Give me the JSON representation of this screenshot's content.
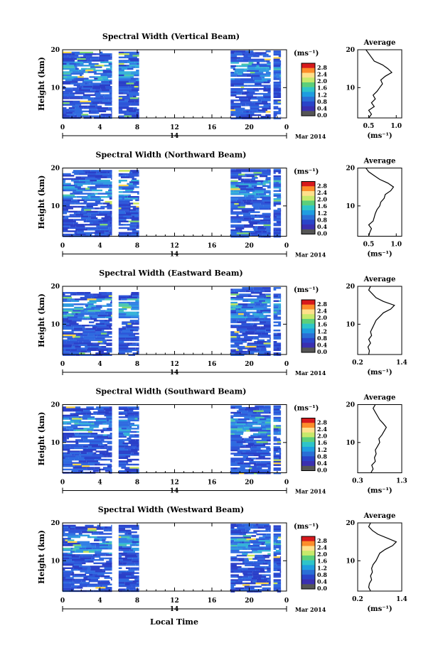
{
  "figure": {
    "xlabel_bottom": "Local Time",
    "date_label": "Mar 2014",
    "day_label": "14",
    "ylabel": "Height (km)",
    "unit_label": "(ms⁻¹)",
    "avg_title": "Average",
    "avg_xlabel": "(ms⁻¹)"
  },
  "colorbar": {
    "ticks": [
      "2.8",
      "2.4",
      "2.0",
      "1.6",
      "1.2",
      "0.8",
      "0.4",
      "0.0"
    ],
    "colors": [
      "#d7191c",
      "#fc8d2b",
      "#fee08b",
      "#c7e96b",
      "#5ccf7a",
      "#2ec4c9",
      "#1f9de0",
      "#2a6fd6",
      "#2a44c9",
      "#3a2fb0",
      "#555555"
    ]
  },
  "chart_data": [
    {
      "type": "heatmap",
      "title": "Spectral Width (Vertical Beam)",
      "x_ticks": [
        "0",
        "4",
        "8",
        "12",
        "16",
        "20",
        "0"
      ],
      "y_ticks": [
        "20",
        "10"
      ],
      "xlim": [
        0,
        24
      ],
      "ylim": [
        2,
        20
      ],
      "data_segments_hours": [
        [
          0,
          5.3
        ],
        [
          6,
          8.2
        ],
        [
          18,
          22.3
        ],
        [
          22.6,
          23.4
        ]
      ],
      "average_profile": {
        "x_ticks": [
          "0.5",
          "1.0"
        ],
        "xlim": [
          0.3,
          1.1
        ],
        "y_ticks": [
          "20",
          "10"
        ],
        "heights_km": [
          2,
          3,
          4,
          5,
          6,
          7,
          8,
          9,
          10,
          11,
          12,
          13,
          14,
          15,
          16,
          17,
          18,
          19,
          20
        ],
        "values": [
          0.5,
          0.55,
          0.5,
          0.6,
          0.55,
          0.62,
          0.58,
          0.65,
          0.7,
          0.75,
          0.72,
          0.8,
          0.92,
          0.85,
          0.75,
          0.6,
          0.55,
          0.5,
          0.45
        ]
      }
    },
    {
      "type": "heatmap",
      "title": "Spectral Width (Northward Beam)",
      "x_ticks": [
        "0",
        "4",
        "8",
        "12",
        "16",
        "20",
        "0"
      ],
      "y_ticks": [
        "20",
        "10"
      ],
      "xlim": [
        0,
        24
      ],
      "ylim": [
        2,
        20
      ],
      "data_segments_hours": [
        [
          0,
          5.3
        ],
        [
          6,
          8.2
        ],
        [
          18,
          22.3
        ],
        [
          22.6,
          23.4
        ]
      ],
      "average_profile": {
        "x_ticks": [
          "0.5",
          "1.0"
        ],
        "xlim": [
          0.3,
          1.1
        ],
        "y_ticks": [
          "20",
          "10"
        ],
        "heights_km": [
          2,
          3,
          4,
          5,
          6,
          7,
          8,
          9,
          10,
          11,
          12,
          13,
          14,
          15,
          16,
          17,
          18,
          19,
          20
        ],
        "values": [
          0.5,
          0.52,
          0.55,
          0.5,
          0.58,
          0.6,
          0.62,
          0.65,
          0.7,
          0.72,
          0.78,
          0.8,
          0.9,
          0.95,
          0.85,
          0.7,
          0.6,
          0.5,
          0.45
        ]
      }
    },
    {
      "type": "heatmap",
      "title": "Spectral Width (Eastward Beam)",
      "x_ticks": [
        "0",
        "4",
        "8",
        "12",
        "16",
        "20",
        "0"
      ],
      "y_ticks": [
        "20",
        "10"
      ],
      "xlim": [
        0,
        24
      ],
      "ylim": [
        2,
        20
      ],
      "data_segments_hours": [
        [
          0,
          5.3
        ],
        [
          6,
          8.2
        ],
        [
          18,
          22.3
        ],
        [
          22.6,
          23.4
        ]
      ],
      "average_profile": {
        "x_ticks": [
          "0.2",
          "1.4"
        ],
        "xlim": [
          0.2,
          1.4
        ],
        "y_ticks": [
          "20",
          "10"
        ],
        "heights_km": [
          2,
          3,
          4,
          5,
          6,
          7,
          8,
          9,
          10,
          11,
          12,
          13,
          14,
          15,
          16,
          17,
          18,
          19,
          20
        ],
        "values": [
          0.5,
          0.52,
          0.48,
          0.55,
          0.5,
          0.58,
          0.55,
          0.6,
          0.65,
          0.7,
          0.8,
          0.9,
          1.1,
          1.2,
          0.9,
          0.7,
          0.6,
          0.5,
          0.55
        ]
      }
    },
    {
      "type": "heatmap",
      "title": "Spectral Width (Southward Beam)",
      "x_ticks": [
        "0",
        "4",
        "8",
        "12",
        "16",
        "20",
        "0"
      ],
      "y_ticks": [
        "20",
        "10"
      ],
      "xlim": [
        0,
        24
      ],
      "ylim": [
        2,
        20
      ],
      "data_segments_hours": [
        [
          0,
          5.3
        ],
        [
          6,
          8.2
        ],
        [
          18,
          22.3
        ],
        [
          22.6,
          23.4
        ]
      ],
      "average_profile": {
        "x_ticks": [
          "0.3",
          "1.3"
        ],
        "xlim": [
          0.3,
          1.3
        ],
        "y_ticks": [
          "20",
          "10"
        ],
        "heights_km": [
          2,
          3,
          4,
          5,
          6,
          7,
          8,
          9,
          10,
          11,
          12,
          13,
          14,
          15,
          16,
          17,
          18,
          19,
          20
        ],
        "values": [
          0.6,
          0.65,
          0.62,
          0.7,
          0.68,
          0.72,
          0.7,
          0.75,
          0.8,
          0.78,
          0.85,
          0.9,
          0.95,
          0.88,
          0.8,
          0.75,
          0.7,
          0.65,
          0.7
        ]
      }
    },
    {
      "type": "heatmap",
      "title": "Spectral Width (Westward Beam)",
      "x_ticks": [
        "0",
        "4",
        "8",
        "12",
        "16",
        "20",
        "0"
      ],
      "y_ticks": [
        "20",
        "10"
      ],
      "xlim": [
        0,
        24
      ],
      "ylim": [
        2,
        20
      ],
      "data_segments_hours": [
        [
          0,
          5.3
        ],
        [
          6,
          8.2
        ],
        [
          18,
          22.3
        ],
        [
          22.6,
          23.4
        ]
      ],
      "average_profile": {
        "x_ticks": [
          "0.2",
          "1.4"
        ],
        "xlim": [
          0.2,
          1.4
        ],
        "y_ticks": [
          "20",
          "10"
        ],
        "heights_km": [
          2,
          3,
          4,
          5,
          6,
          7,
          8,
          9,
          10,
          11,
          12,
          13,
          14,
          15,
          16,
          17,
          18,
          19,
          20
        ],
        "values": [
          0.55,
          0.5,
          0.52,
          0.58,
          0.55,
          0.6,
          0.58,
          0.62,
          0.7,
          0.75,
          0.8,
          0.95,
          1.15,
          1.25,
          1.0,
          0.75,
          0.6,
          0.5,
          0.55
        ]
      }
    }
  ]
}
